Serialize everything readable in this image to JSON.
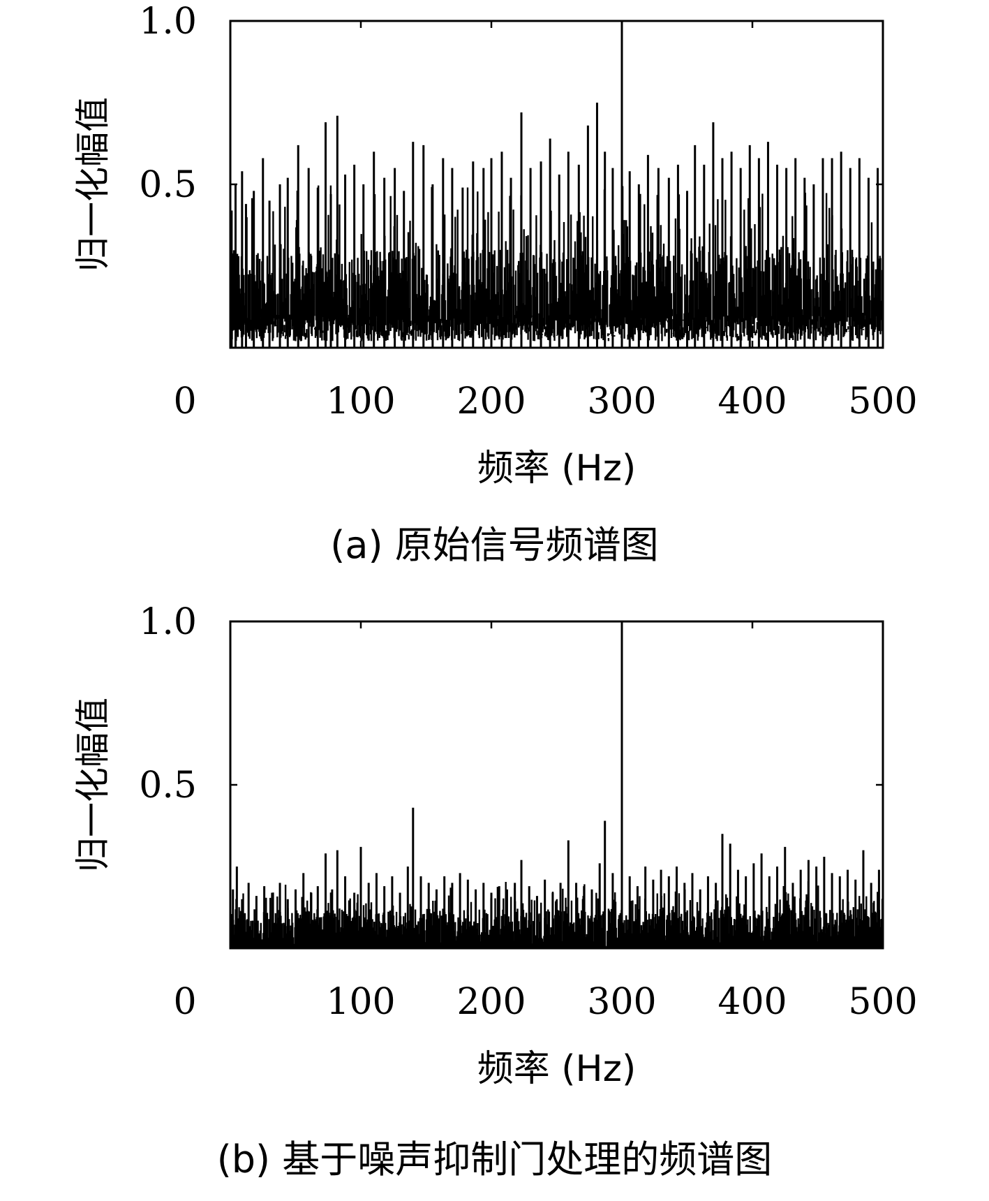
{
  "chart_data": [
    {
      "type": "line",
      "caption": "(a) 原始信号频谱图",
      "xlabel": "频率 (Hz)",
      "ylabel": "归一化幅值",
      "xlim": [
        0,
        500
      ],
      "ylim": [
        0,
        1.0
      ],
      "xticks": [
        "0",
        "100",
        "200",
        "300",
        "400",
        "500"
      ],
      "yticks": [
        "0.5",
        "1.0"
      ],
      "grid": false,
      "noise_floor": [
        0.02,
        0.3
      ],
      "series": [
        {
          "values_note_x": [
            300
          ],
          "x": [
            1,
            4,
            9,
            12,
            18,
            25,
            30,
            38,
            44,
            52,
            60,
            67,
            73,
            77,
            82,
            88,
            95,
            102,
            110,
            118,
            126,
            133,
            140,
            148,
            155,
            163,
            170,
            178,
            186,
            194,
            200,
            208,
            215,
            223,
            230,
            238,
            245,
            252,
            259,
            267,
            274,
            281,
            287,
            293,
            300,
            306,
            313,
            320,
            328,
            336,
            343,
            350,
            356,
            363,
            370,
            377,
            384,
            391,
            398,
            405,
            412,
            419,
            426,
            433,
            440,
            447,
            454,
            461,
            468,
            475,
            482,
            489,
            496
          ],
          "y": [
            0.42,
            0.5,
            0.54,
            0.44,
            0.48,
            0.58,
            0.45,
            0.5,
            0.52,
            0.62,
            0.55,
            0.49,
            0.69,
            0.47,
            0.71,
            0.53,
            0.56,
            0.5,
            0.6,
            0.52,
            0.55,
            0.48,
            0.63,
            0.62,
            0.5,
            0.58,
            0.55,
            0.49,
            0.57,
            0.55,
            0.58,
            0.6,
            0.52,
            0.72,
            0.55,
            0.57,
            0.64,
            0.53,
            0.6,
            0.56,
            0.68,
            0.75,
            0.6,
            0.55,
            1.0,
            0.54,
            0.5,
            0.59,
            0.55,
            0.52,
            0.56,
            0.48,
            0.62,
            0.56,
            0.69,
            0.58,
            0.6,
            0.55,
            0.62,
            0.58,
            0.63,
            0.56,
            0.55,
            0.58,
            0.52,
            0.5,
            0.58,
            0.58,
            0.6,
            0.55,
            0.58,
            0.52,
            0.55
          ]
        }
      ]
    },
    {
      "type": "line",
      "caption": "(b) 基于噪声抑制门处理的频谱图",
      "xlabel": "频率 (Hz)",
      "ylabel": "归一化幅值",
      "xlim": [
        0,
        500
      ],
      "ylim": [
        0,
        1.0
      ],
      "xticks": [
        "0",
        "100",
        "200",
        "300",
        "400",
        "500"
      ],
      "yticks": [
        "0.5",
        "1.0"
      ],
      "grid": false,
      "noise_floor": [
        0.0,
        0.12
      ],
      "series": [
        {
          "x": [
            2,
            5,
            9,
            14,
            20,
            26,
            32,
            38,
            44,
            50,
            56,
            62,
            67,
            73,
            78,
            82,
            88,
            95,
            100,
            106,
            112,
            118,
            124,
            130,
            136,
            140,
            146,
            152,
            158,
            164,
            170,
            176,
            182,
            188,
            194,
            200,
            206,
            212,
            218,
            223,
            229,
            235,
            241,
            247,
            253,
            259,
            265,
            271,
            277,
            283,
            287,
            293,
            300,
            306,
            312,
            318,
            324,
            330,
            336,
            342,
            348,
            354,
            360,
            366,
            372,
            377,
            383,
            389,
            395,
            401,
            407,
            413,
            419,
            425,
            431,
            437,
            443,
            449,
            455,
            461,
            467,
            473,
            479,
            485,
            491,
            497
          ],
          "y": [
            0.18,
            0.25,
            0.15,
            0.2,
            0.16,
            0.19,
            0.17,
            0.2,
            0.15,
            0.18,
            0.23,
            0.17,
            0.19,
            0.29,
            0.18,
            0.3,
            0.22,
            0.17,
            0.31,
            0.2,
            0.23,
            0.19,
            0.22,
            0.17,
            0.25,
            0.43,
            0.22,
            0.2,
            0.18,
            0.22,
            0.2,
            0.23,
            0.21,
            0.18,
            0.2,
            0.17,
            0.19,
            0.18,
            0.2,
            0.27,
            0.19,
            0.16,
            0.21,
            0.17,
            0.2,
            0.33,
            0.2,
            0.19,
            0.18,
            0.26,
            0.39,
            0.23,
            1.0,
            0.22,
            0.19,
            0.25,
            0.21,
            0.24,
            0.22,
            0.25,
            0.2,
            0.23,
            0.18,
            0.22,
            0.2,
            0.35,
            0.32,
            0.24,
            0.22,
            0.26,
            0.29,
            0.22,
            0.25,
            0.31,
            0.2,
            0.24,
            0.27,
            0.25,
            0.28,
            0.23,
            0.22,
            0.24,
            0.21,
            0.3,
            0.2,
            0.24
          ]
        }
      ]
    }
  ]
}
